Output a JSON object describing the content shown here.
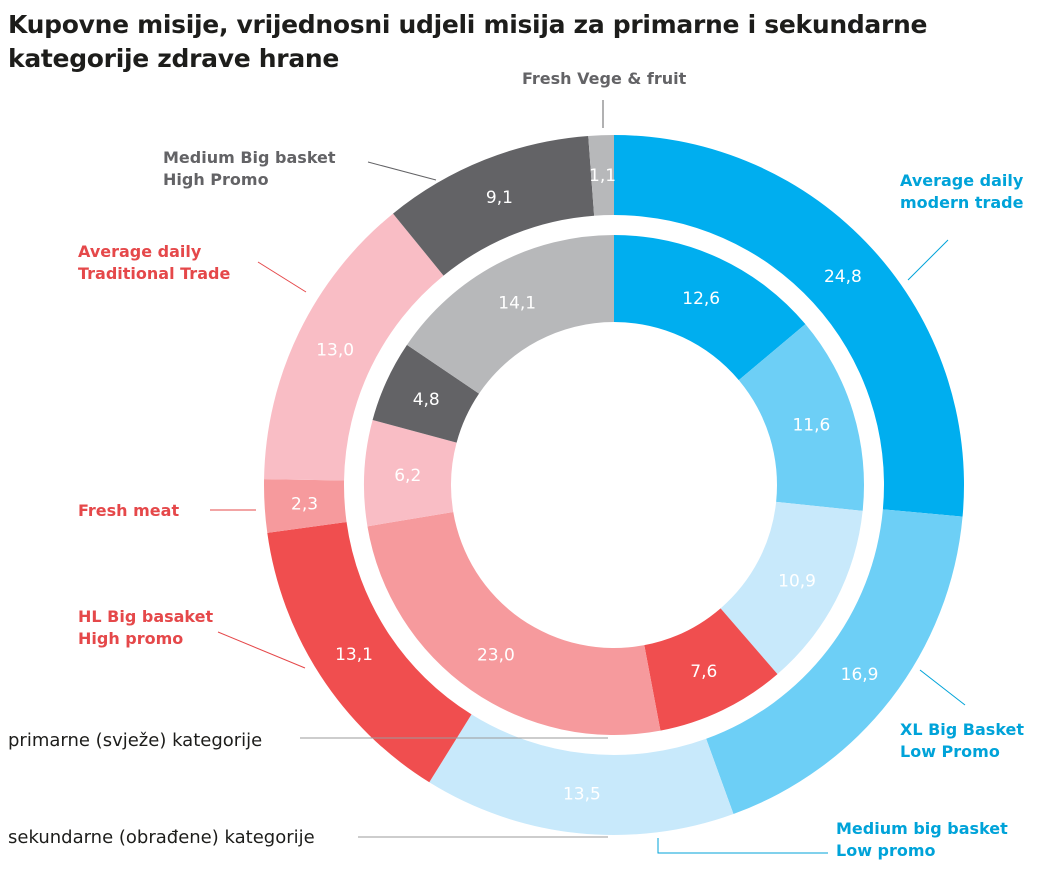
{
  "title_lines": [
    "Kupovne misije, vrijednosni udjeli misija za primarne i sekundarne",
    "kategorije zdrave hrane"
  ],
  "chart_data": {
    "type": "donut",
    "title": "Kupovne misije, vrijednosni udjeli misija za primarne i sekundarne kategorije zdrave hrane",
    "categories": [
      "Average daily modern trade",
      "XL Big Basket Low Promo",
      "Medium big basket Low promo",
      "HL Big basaket High promo",
      "Fresh meat",
      "Average daily Traditional Trade",
      "Medium Big basket High Promo",
      "Fresh Vege & fruit"
    ],
    "category_label_lines": [
      [
        "Average daily",
        "modern trade"
      ],
      [
        "XL Big Basket",
        "Low Promo"
      ],
      [
        "Medium big basket",
        "Low promo"
      ],
      [
        "HL Big basaket",
        "High promo"
      ],
      [
        "Fresh meat"
      ],
      [
        "Average daily",
        "Traditional Trade"
      ],
      [
        "Medium Big basket",
        "High Promo"
      ],
      [
        "Fresh Vege & fruit"
      ]
    ],
    "series": [
      {
        "name": "sekundarne (obrađene) kategorije",
        "ring": "outer",
        "values": [
          24.8,
          16.9,
          13.5,
          13.1,
          2.3,
          13.0,
          9.1,
          1.1
        ],
        "value_labels": [
          "24,8",
          "16,9",
          "13,5",
          "13,1",
          "2,3",
          "13,0",
          "9,1",
          "1,1"
        ]
      },
      {
        "name": "primarne (svježe) kategorije",
        "ring": "inner",
        "values": [
          12.6,
          11.6,
          10.9,
          7.6,
          23.0,
          6.2,
          4.8,
          14.1
        ],
        "value_labels": [
          "12,6",
          "11,6",
          "10,9",
          "7,6",
          "23,0",
          "6,2",
          "4,8",
          "14,1"
        ]
      }
    ],
    "colors": {
      "outer": [
        "#00aeef",
        "#6dcff6",
        "#c8e9fb",
        "#f04e4f",
        "#f69a9d",
        "#f9bdc5",
        "#636366",
        "#b7b8ba"
      ],
      "inner": [
        "#00aeef",
        "#6dcff6",
        "#c8e9fb",
        "#f04e4f",
        "#f69a9d",
        "#f9bdc5",
        "#636366",
        "#b7b8ba"
      ],
      "category_text": [
        "#00a3d9",
        "#00a3d9",
        "#00a3d9",
        "#e5484a",
        "#e5484a",
        "#e5484a",
        "#636366",
        "#636366"
      ],
      "value_text": "#ffffff"
    }
  }
}
